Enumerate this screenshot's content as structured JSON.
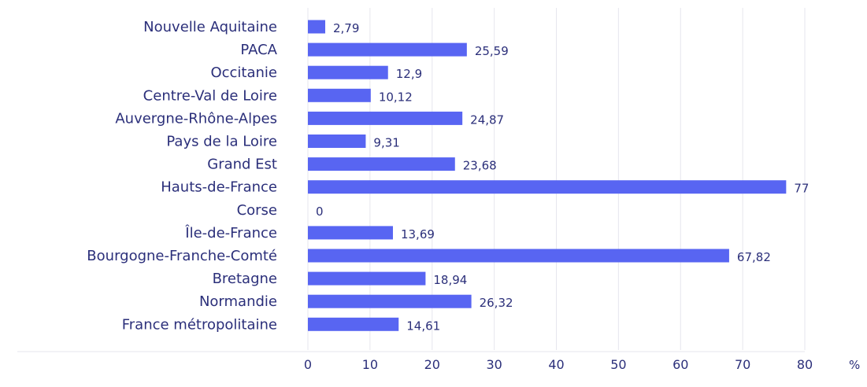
{
  "chart_data": {
    "type": "bar",
    "orientation": "horizontal",
    "categories": [
      "Nouvelle Aquitaine",
      "PACA",
      "Occitanie",
      "Centre-Val de Loire",
      "Auvergne-Rhône-Alpes",
      "Pays de la Loire",
      "Grand Est",
      "Hauts-de-France",
      "Corse",
      "Île-de-France",
      "Bourgogne-Franche-Comté",
      "Bretagne",
      "Normandie",
      "France métropolitaine"
    ],
    "values": [
      2.79,
      25.59,
      12.9,
      10.12,
      24.87,
      9.31,
      23.68,
      77,
      0,
      13.69,
      67.82,
      18.94,
      26.32,
      14.61
    ],
    "value_labels": [
      "2,79",
      "25,59",
      "12,9",
      "10,12",
      "24,87",
      "9,31",
      "23,68",
      "77",
      "0",
      "13,69",
      "67,82",
      "18,94",
      "26,32",
      "14,61"
    ],
    "xlim": [
      0,
      80
    ],
    "x_ticks": [
      0,
      10,
      20,
      30,
      40,
      50,
      60,
      70,
      80
    ],
    "x_unit": "%",
    "grid": true,
    "colors": {
      "bar": "#5865f2",
      "text": "#2b2f7a",
      "grid": "#e6e6ee"
    }
  }
}
